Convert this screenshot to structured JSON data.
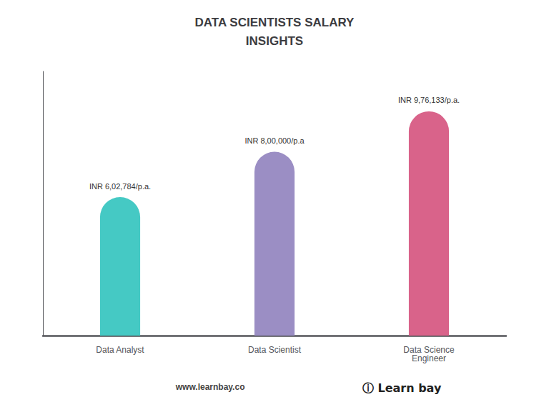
{
  "chart_data": {
    "type": "bar",
    "title": "DATA SCIENTISTS SALARY",
    "subtitle": "INSIGHTS",
    "categories": [
      "Data Analyst",
      "Data Scientist",
      "Data Science\nEngineer"
    ],
    "values": [
      602784,
      800000,
      976133
    ],
    "value_labels": [
      "INR 6,02,784/p.a.",
      "INR 8,00,000/p.a",
      "INR 9,76,133/p.a."
    ],
    "colors": [
      "#45C9C4",
      "#9B8EC4",
      "#D9638A"
    ],
    "ylim": [
      0,
      1150000
    ],
    "grid": false,
    "tick_labels": "x",
    "data_labels": true,
    "annotations": [
      "www.learnbay.co",
      "ⓘ",
      "Learn",
      "bay"
    ]
  }
}
